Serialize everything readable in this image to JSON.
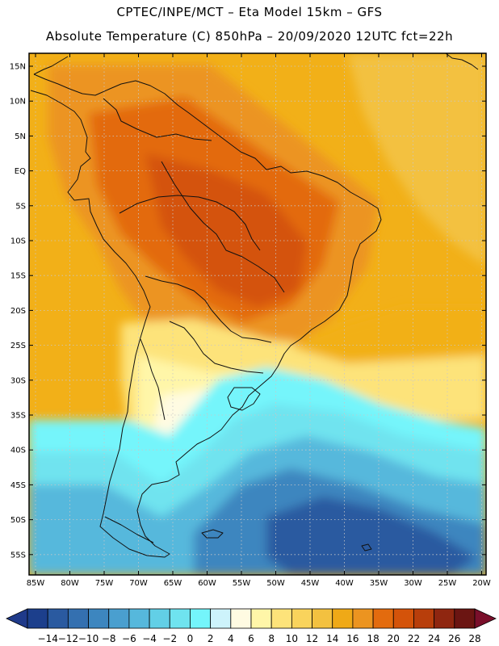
{
  "header": {
    "line1": "CPTEC/INPE/MCT –  Eta Model 15km – GFS",
    "line2": "Absolute Temperature (C) 850hPa – 20/09/2020 12UTC fct=22h"
  },
  "axes": {
    "lat_labels": [
      "15N",
      "10N",
      "5N",
      "EQ",
      "5S",
      "10S",
      "15S",
      "20S",
      "25S",
      "30S",
      "35S",
      "40S",
      "45S",
      "50S",
      "55S"
    ],
    "lon_labels": [
      "85W",
      "80W",
      "75W",
      "70W",
      "65W",
      "60W",
      "55W",
      "50W",
      "45W",
      "40W",
      "35W",
      "30W",
      "25W",
      "20W"
    ]
  },
  "colorbar": {
    "labels": [
      "-14",
      "-12",
      "-10",
      "-8",
      "-6",
      "-4",
      "-2",
      "0",
      "2",
      "4",
      "6",
      "8",
      "10",
      "12",
      "14",
      "16",
      "18",
      "20",
      "22",
      "24",
      "26",
      "28"
    ],
    "colors": [
      "#1c3f8c",
      "#2a5aa0",
      "#3470b0",
      "#3d86bf",
      "#4a9fcf",
      "#56b8dc",
      "#62cfe6",
      "#6fe3ef",
      "#74f5fb",
      "#cdf3fb",
      "#fffbe2",
      "#fff6a8",
      "#fde37a",
      "#f9d35c",
      "#f3c140",
      "#efa917",
      "#ec9420",
      "#e36b0e",
      "#d4530a",
      "#b83e0b",
      "#8f2610",
      "#6b1512"
    ],
    "under_color": "#1f3a8a",
    "over_color": "#7a0f2b"
  },
  "map": {
    "colors": {
      "ocean_warm": "#f2b018",
      "ocean_mid": "#f3c140",
      "land_hot": "#e36b0e",
      "land_hotter": "#d4530a",
      "warm": "#ec9420",
      "mild": "#fde37a",
      "pale": "#fff6a8",
      "cream": "#fffbe2",
      "cyan": "#74f5fb",
      "light_cyan": "#6fe3ef",
      "sky": "#56b8dc",
      "blue": "#3d86bf",
      "deep_blue": "#2a5aa0"
    }
  }
}
